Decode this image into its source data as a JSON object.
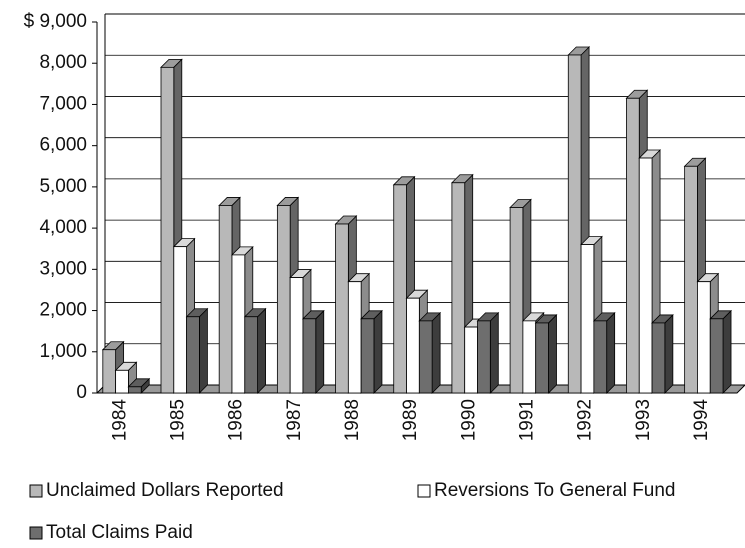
{
  "chart_data": {
    "type": "bar3d",
    "categories": [
      "1984",
      "1985",
      "1986",
      "1987",
      "1988",
      "1989",
      "1990",
      "1991",
      "1992",
      "1993",
      "1994"
    ],
    "series": [
      {
        "name": "Unclaimed Dollars Reported",
        "color": "#b8b8b8",
        "values": [
          1050,
          7900,
          4550,
          4550,
          4100,
          5050,
          5100,
          4500,
          8200,
          7150,
          5500
        ]
      },
      {
        "name": "Reversions To General Fund",
        "color": "#ffffff",
        "values": [
          550,
          3550,
          3350,
          2800,
          2700,
          2300,
          1600,
          1750,
          3600,
          5700,
          2700
        ]
      },
      {
        "name": "Total Claims Paid",
        "color": "#6e6e6e",
        "values": [
          150,
          1850,
          1850,
          1800,
          1800,
          1750,
          1750,
          1700,
          1750,
          1700,
          1800
        ]
      }
    ],
    "ylim": [
      0,
      9000
    ],
    "yticks": [
      {
        "value": 0,
        "label": "0"
      },
      {
        "value": 1000,
        "label": "1,000"
      },
      {
        "value": 2000,
        "label": "2,000"
      },
      {
        "value": 3000,
        "label": "3,000"
      },
      {
        "value": 4000,
        "label": "4,000"
      },
      {
        "value": 5000,
        "label": "5,000"
      },
      {
        "value": 6000,
        "label": "6,000"
      },
      {
        "value": 7000,
        "label": "7,000"
      },
      {
        "value": 8000,
        "label": "8,000"
      },
      {
        "value": 9000,
        "label": "$ 9,000"
      }
    ],
    "grid": true
  }
}
